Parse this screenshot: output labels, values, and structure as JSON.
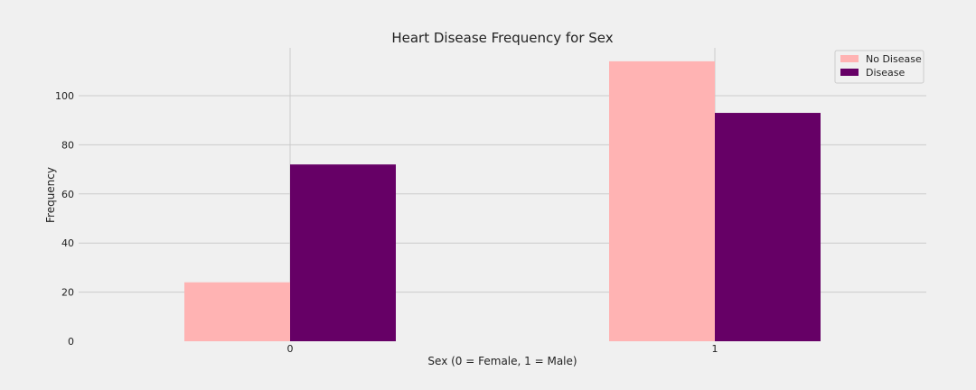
{
  "chart_data": {
    "type": "bar",
    "title": "Heart Disease Frequency for Sex",
    "xlabel": "Sex (0 = Female, 1 = Male)",
    "ylabel": "Frequency",
    "categories": [
      "0",
      "1"
    ],
    "series": [
      {
        "name": "No Disease",
        "values": [
          24,
          114
        ],
        "color": "#ffb3b3"
      },
      {
        "name": "Disease",
        "values": [
          72,
          93
        ],
        "color": "#660066"
      }
    ],
    "ylim": [
      0,
      120
    ],
    "yticks": [
      0,
      20,
      40,
      60,
      80,
      100
    ],
    "grid": true,
    "legend_position": "top-right"
  }
}
